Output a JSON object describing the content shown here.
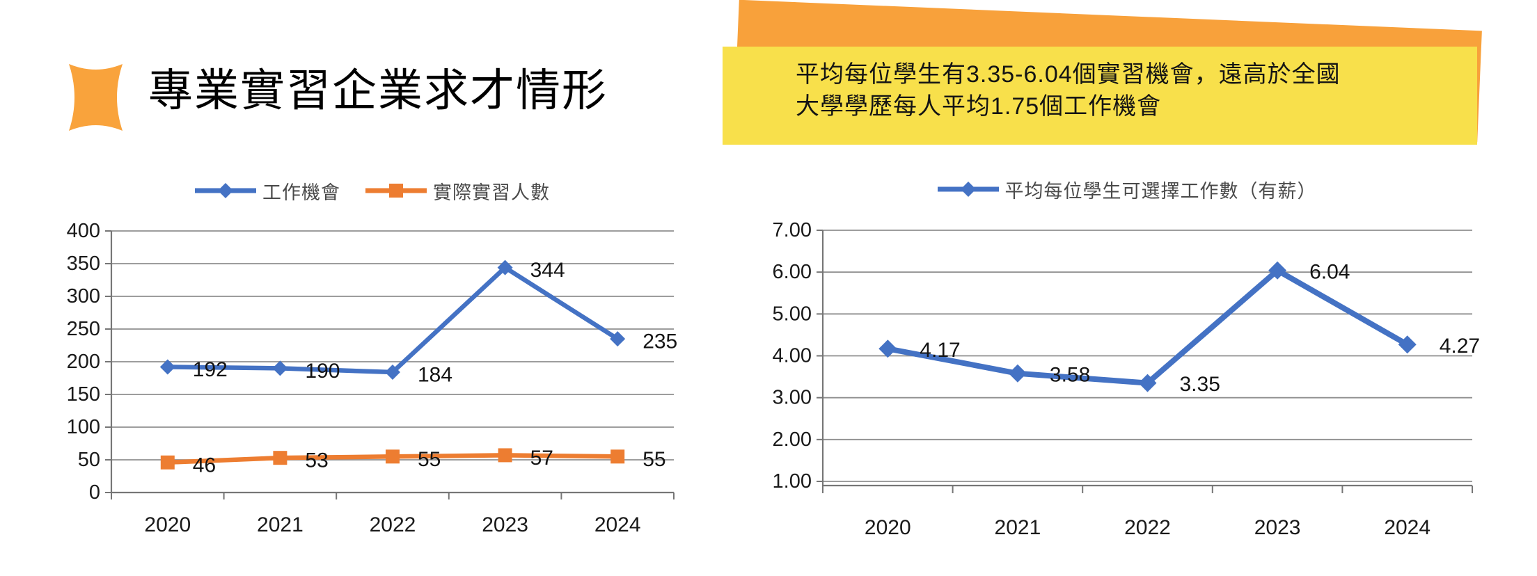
{
  "header": {
    "title": "專業實習企業求才情形",
    "accent_color": "#F9A33C"
  },
  "callout": {
    "text": "平均每位學生有3.35-6.04個實習機會，遠高於全國\n大學學歷每人平均1.75個工作機會",
    "bg_color": "#F8E04B",
    "backdrop_color": "#F8A13B"
  },
  "chart_data": [
    {
      "type": "line",
      "title": "",
      "categories": [
        "2020",
        "2021",
        "2022",
        "2023",
        "2024"
      ],
      "series": [
        {
          "name": "工作機會",
          "color": "#4472C4",
          "marker": "diamond",
          "values": [
            192,
            190,
            184,
            344,
            235
          ]
        },
        {
          "name": "實際實習人數",
          "color": "#ED7D31",
          "marker": "square",
          "values": [
            46,
            53,
            55,
            57,
            55
          ]
        }
      ],
      "xlabel": "",
      "ylabel": "",
      "ylim": [
        0,
        400
      ],
      "ytick_step": 50,
      "label_format": "0",
      "grid": true,
      "legend_position": "top",
      "data_labels": true
    },
    {
      "type": "line",
      "title": "",
      "categories": [
        "2020",
        "2021",
        "2022",
        "2023",
        "2024"
      ],
      "series": [
        {
          "name": "平均每位學生可選擇工作數（有薪）",
          "color": "#4472C4",
          "marker": "diamond",
          "values": [
            4.17,
            3.58,
            3.35,
            6.04,
            4.27
          ]
        }
      ],
      "xlabel": "",
      "ylabel": "",
      "ylim": [
        1,
        7
      ],
      "ytick_step": 1,
      "label_format": "0.00",
      "grid": true,
      "legend_position": "top",
      "data_labels": true
    }
  ]
}
